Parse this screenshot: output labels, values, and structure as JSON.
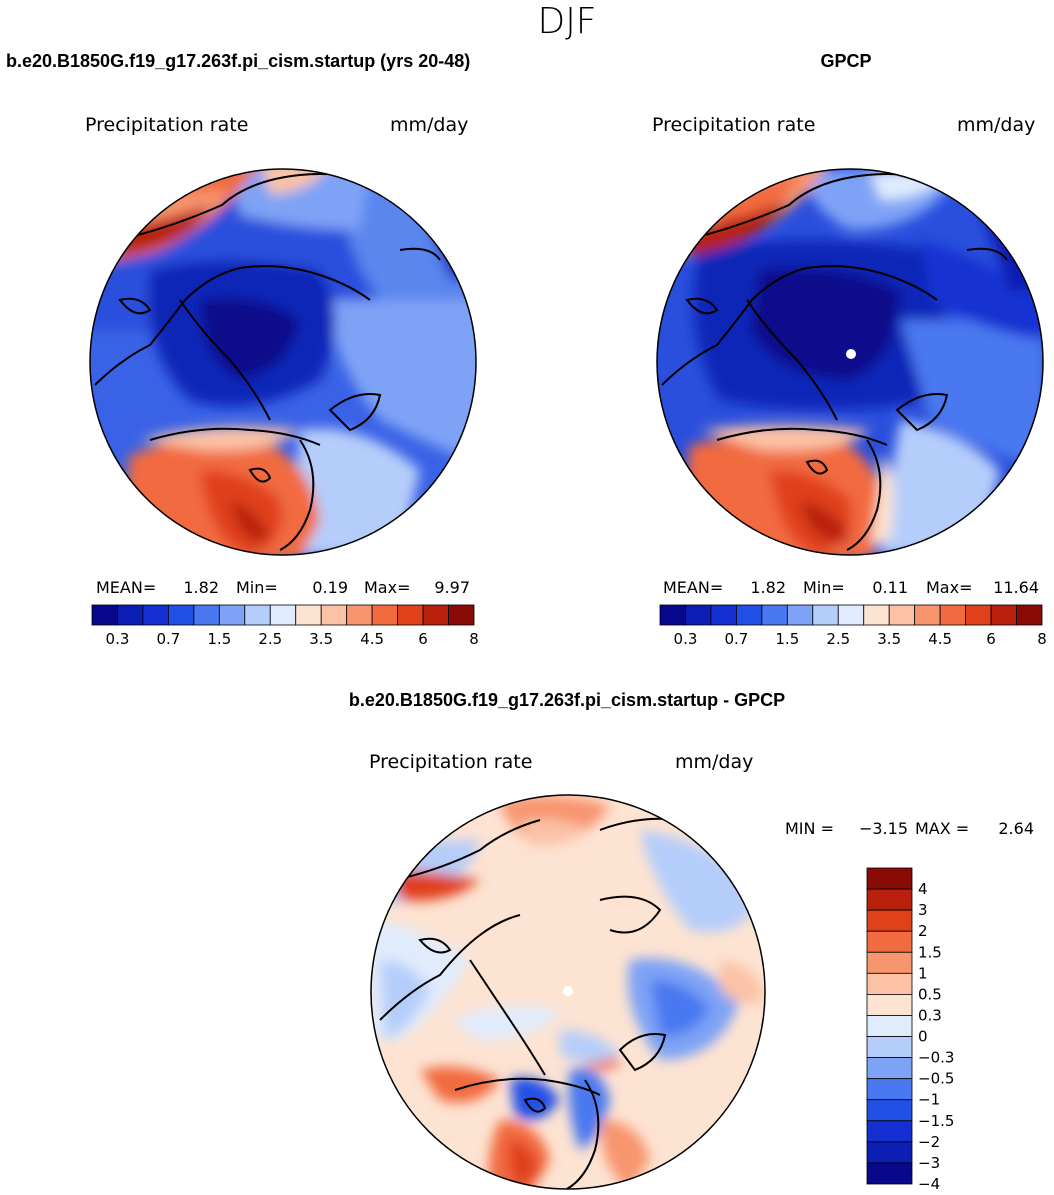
{
  "page": {
    "title": "DJF"
  },
  "colors": {
    "ocean": "#ffffff",
    "coast": "#000000",
    "outline": "#000000"
  },
  "chart_data": [
    {
      "type": "heatmap",
      "projection": "polar stereographic (north pole)",
      "title": "b.e20.B1850G.f19_g17.263f.pi_cism.startup (yrs 20-48)",
      "left_label": "Precipitation rate",
      "right_label": "mm/day",
      "stats": {
        "mean_label": "MEAN=",
        "mean": "1.82",
        "min_label": "Min=",
        "min": "0.19",
        "max_label": "Max=",
        "max": "9.97"
      },
      "colorbar": {
        "colors": [
          "#08088c",
          "#0c1eb4",
          "#1430d2",
          "#2050e6",
          "#4a78f0",
          "#7ea3f6",
          "#b5cdfa",
          "#e0ecfd",
          "#fde3d2",
          "#fbc2a6",
          "#f7956e",
          "#f26a40",
          "#e0401a",
          "#b8200c",
          "#8a0a05"
        ],
        "tick_labels": [
          "0.3",
          "0.7",
          "1.5",
          "2.5",
          "3.5",
          "4.5",
          "6",
          "8"
        ]
      }
    },
    {
      "type": "heatmap",
      "projection": "polar stereographic (north pole)",
      "title": "GPCP",
      "left_label": "Precipitation rate",
      "right_label": "mm/day",
      "stats": {
        "mean_label": "MEAN=",
        "mean": "1.82",
        "min_label": "Min=",
        "min": "0.11",
        "max_label": "Max=",
        "max": "11.64"
      },
      "colorbar": {
        "colors": [
          "#08088c",
          "#0c1eb4",
          "#1430d2",
          "#2050e6",
          "#4a78f0",
          "#7ea3f6",
          "#b5cdfa",
          "#e0ecfd",
          "#fde3d2",
          "#fbc2a6",
          "#f7956e",
          "#f26a40",
          "#e0401a",
          "#b8200c",
          "#8a0a05"
        ],
        "tick_labels": [
          "0.3",
          "0.7",
          "1.5",
          "2.5",
          "3.5",
          "4.5",
          "6",
          "8"
        ]
      }
    },
    {
      "type": "heatmap",
      "projection": "polar stereographic (north pole)",
      "title": "b.e20.B1850G.f19_g17.263f.pi_cism.startup - GPCP",
      "left_label": "Precipitation rate",
      "right_label": "mm/day",
      "stats": {
        "min_label": "MIN =",
        "min": "−3.15",
        "max_label": "MAX =",
        "max": "2.64"
      },
      "colorbar": {
        "colors_top_to_bottom": [
          "#8a0a05",
          "#b8200c",
          "#e0401a",
          "#f26a40",
          "#f7956e",
          "#fbc2a6",
          "#fde3d2",
          "#e0ecfd",
          "#b5cdfa",
          "#7ea3f6",
          "#4a78f0",
          "#2050e6",
          "#1430d2",
          "#0c1eb4",
          "#08088c"
        ],
        "tick_labels_top_to_bottom": [
          "4",
          "3",
          "2",
          "1.5",
          "1",
          "0.5",
          "0.3",
          "0",
          "−0.3",
          "−0.5",
          "−1",
          "−1.5",
          "−2",
          "−3",
          "−4"
        ]
      }
    }
  ]
}
